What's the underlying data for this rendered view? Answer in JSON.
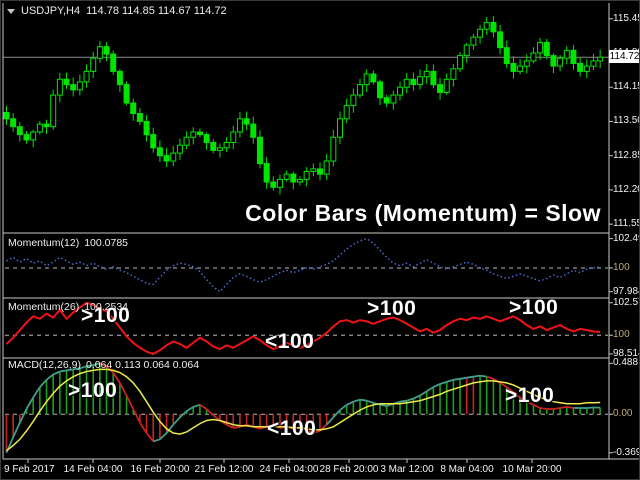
{
  "colors": {
    "candle": "#00E400",
    "mom12_line": "#4A74DC",
    "mom26_line": "#F01414",
    "macd_line": "#3FA08C",
    "macd_line_down": "#D02020",
    "macd_signal": "#ECEC46",
    "hist_up": "#1E9E1E",
    "hist_down": "#C62828",
    "level_line": "#BBBBBB",
    "level_label": "#C8A878",
    "price_line": "#8A8A8A",
    "frame": "#C8C8C8",
    "axis_text": "#F2F2F2",
    "price_box_bg": "#FFFFFF",
    "price_box_text": "#000000",
    "annotation": "#FFFFFF",
    "background": "#000000"
  },
  "time_axis": {
    "labels": [
      "9 Feb 2017",
      "14 Feb 04:00",
      "16 Feb 20:00",
      "21 Feb 12:00",
      "24 Feb 04:00",
      "28 Feb 20:00",
      "3 Mar 12:00",
      "8 Mar 04:00",
      "10 Mar 20:00"
    ]
  },
  "chart_data": [
    {
      "type": "candlestick",
      "title_symbol": "USDJPY,H4",
      "title_ohlc": "114.78 114.85 114.67 114.72",
      "annotation": "Color Bars (Momentum) = Slow",
      "current_price": "114.72",
      "axis_labels": [
        "115.45",
        "114.80",
        "114.15",
        "113.50",
        "112.85",
        "112.20",
        "111.55"
      ],
      "ylim": [
        111.42,
        115.73
      ],
      "closes": [
        113.55,
        113.4,
        113.25,
        113.15,
        113.3,
        113.45,
        113.4,
        114.0,
        114.3,
        114.2,
        114.1,
        114.25,
        114.45,
        114.7,
        114.92,
        114.78,
        114.45,
        114.2,
        113.85,
        113.65,
        113.5,
        113.25,
        113.0,
        112.85,
        112.75,
        112.9,
        113.05,
        113.2,
        113.3,
        113.25,
        113.1,
        112.95,
        113.0,
        113.1,
        113.3,
        113.55,
        113.45,
        113.2,
        112.7,
        112.35,
        112.25,
        112.4,
        112.5,
        112.35,
        112.4,
        112.55,
        112.6,
        112.5,
        112.75,
        113.2,
        113.55,
        113.8,
        114.0,
        114.2,
        114.4,
        114.25,
        113.95,
        113.85,
        114.0,
        114.15,
        114.3,
        114.2,
        114.35,
        114.45,
        114.2,
        114.05,
        114.3,
        114.5,
        114.75,
        114.95,
        115.1,
        115.25,
        115.38,
        115.2,
        114.9,
        114.6,
        114.45,
        114.55,
        114.65,
        114.8,
        115.0,
        114.75,
        114.55,
        114.7,
        114.85,
        114.6,
        114.45,
        114.55,
        114.65,
        114.72
      ]
    },
    {
      "type": "line",
      "name": "Momentum(12)",
      "value": "100.0785",
      "levels": [
        "102.4921",
        "100",
        "97.984"
      ],
      "ylim": [
        97.7,
        102.8
      ],
      "style": "dotted",
      "values": [
        100.6,
        100.9,
        100.5,
        100.8,
        100.4,
        100.6,
        100.2,
        100.5,
        100.9,
        100.6,
        100.3,
        100.5,
        100.2,
        100.4,
        100.1,
        99.9,
        100.1,
        99.8,
        99.6,
        99.3,
        99.0,
        98.7,
        98.6,
        99.2,
        99.8,
        100.2,
        100.4,
        100.3,
        100.1,
        99.7,
        99.0,
        98.4,
        97.984,
        98.6,
        99.2,
        99.5,
        99.3,
        99.0,
        98.8,
        99.0,
        99.3,
        99.6,
        99.8,
        99.6,
        99.8,
        100.0,
        99.9,
        100.1,
        100.3,
        100.6,
        101.1,
        101.6,
        102.0,
        102.3,
        102.49,
        102.1,
        101.5,
        100.9,
        100.4,
        100.2,
        100.4,
        100.1,
        100.4,
        100.7,
        100.4,
        100.1,
        99.9,
        100.1,
        100.3,
        100.5,
        100.3,
        100.0,
        99.8,
        99.5,
        99.3,
        99.1,
        99.3,
        99.5,
        99.3,
        99.1,
        98.9,
        99.1,
        99.4,
        99.2,
        99.5,
        99.8,
        99.6,
        99.9,
        100.0,
        100.08
      ]
    },
    {
      "type": "line",
      "name": "Momentum(26)",
      "value": "100.2534",
      "levels": [
        "102.5738",
        "100",
        "98.5143"
      ],
      "ylim": [
        98.35,
        102.75
      ],
      "style": "solid",
      "annotations": [
        ">100",
        "<100",
        ">100",
        ">100"
      ],
      "values": [
        99.3,
        99.8,
        100.4,
        101.0,
        101.5,
        101.3,
        101.7,
        101.4,
        102.0,
        101.3,
        101.8,
        102.2,
        102.57,
        102.4,
        102.1,
        101.9,
        101.3,
        100.6,
        99.9,
        99.4,
        99.0,
        98.7,
        98.51,
        98.8,
        99.2,
        99.5,
        99.3,
        99.0,
        99.4,
        99.8,
        99.5,
        99.1,
        98.9,
        99.2,
        99.0,
        99.3,
        99.6,
        99.9,
        99.6,
        99.2,
        98.9,
        99.1,
        99.4,
        99.2,
        99.0,
        99.2,
        99.5,
        99.8,
        100.2,
        100.7,
        101.1,
        101.2,
        101.0,
        101.2,
        101.1,
        100.9,
        101.1,
        101.3,
        101.4,
        101.2,
        100.9,
        100.6,
        100.3,
        100.5,
        100.2,
        100.4,
        100.8,
        101.1,
        101.3,
        101.2,
        101.4,
        101.3,
        101.5,
        101.3,
        101.1,
        101.3,
        101.5,
        101.2,
        100.8,
        100.5,
        100.7,
        100.4,
        100.6,
        100.8,
        100.5,
        100.3,
        100.5,
        100.4,
        100.3,
        100.25
      ]
    },
    {
      "type": "macd",
      "name": "MACD(12,26,9)",
      "values_label": "0.064 0.113 0.064 0.064",
      "levels": [
        "0.488",
        "0.00",
        "-0.369"
      ],
      "ylim": [
        -0.41,
        0.52
      ],
      "annotations": [
        ">100",
        "<100",
        ">100"
      ],
      "red_bar_indices": [
        69,
        70
      ],
      "line_red_ranges": [
        [
          14,
          22
        ],
        [
          29,
          48
        ],
        [
          72,
          85
        ]
      ],
      "macd": [
        -0.369,
        -0.22,
        -0.08,
        0.05,
        0.16,
        0.26,
        0.33,
        0.38,
        0.41,
        0.42,
        0.43,
        0.44,
        0.46,
        0.47,
        0.488,
        0.46,
        0.4,
        0.3,
        0.18,
        0.05,
        -0.08,
        -0.18,
        -0.26,
        -0.24,
        -0.18,
        -0.1,
        -0.03,
        0.03,
        0.07,
        0.09,
        0.05,
        -0.01,
        -0.06,
        -0.1,
        -0.13,
        -0.12,
        -0.1,
        -0.12,
        -0.14,
        -0.12,
        -0.11,
        -0.13,
        -0.12,
        -0.14,
        -0.13,
        -0.15,
        -0.18,
        -0.16,
        -0.1,
        -0.03,
        0.04,
        0.09,
        0.12,
        0.14,
        0.13,
        0.11,
        0.09,
        0.08,
        0.1,
        0.12,
        0.13,
        0.15,
        0.18,
        0.22,
        0.26,
        0.29,
        0.31,
        0.33,
        0.34,
        0.35,
        0.36,
        0.37,
        0.36,
        0.34,
        0.3,
        0.26,
        0.21,
        0.16,
        0.12,
        0.09,
        0.06,
        0.05,
        0.05,
        0.06,
        0.07,
        0.06,
        0.06,
        0.06,
        0.065,
        0.064
      ],
      "signal": [
        -0.35,
        -0.3,
        -0.24,
        -0.16,
        -0.07,
        0.03,
        0.12,
        0.2,
        0.27,
        0.32,
        0.36,
        0.39,
        0.41,
        0.42,
        0.43,
        0.43,
        0.42,
        0.4,
        0.36,
        0.3,
        0.22,
        0.12,
        0.02,
        -0.07,
        -0.14,
        -0.18,
        -0.19,
        -0.17,
        -0.13,
        -0.09,
        -0.06,
        -0.05,
        -0.06,
        -0.08,
        -0.1,
        -0.11,
        -0.11,
        -0.12,
        -0.12,
        -0.12,
        -0.12,
        -0.12,
        -0.12,
        -0.13,
        -0.13,
        -0.14,
        -0.15,
        -0.15,
        -0.14,
        -0.12,
        -0.08,
        -0.04,
        0.0,
        0.04,
        0.07,
        0.09,
        0.1,
        0.1,
        0.1,
        0.1,
        0.11,
        0.12,
        0.13,
        0.15,
        0.17,
        0.19,
        0.22,
        0.24,
        0.26,
        0.28,
        0.3,
        0.31,
        0.32,
        0.32,
        0.31,
        0.3,
        0.28,
        0.25,
        0.22,
        0.19,
        0.16,
        0.14,
        0.12,
        0.11,
        0.1,
        0.1,
        0.1,
        0.11,
        0.11,
        0.113
      ]
    }
  ]
}
